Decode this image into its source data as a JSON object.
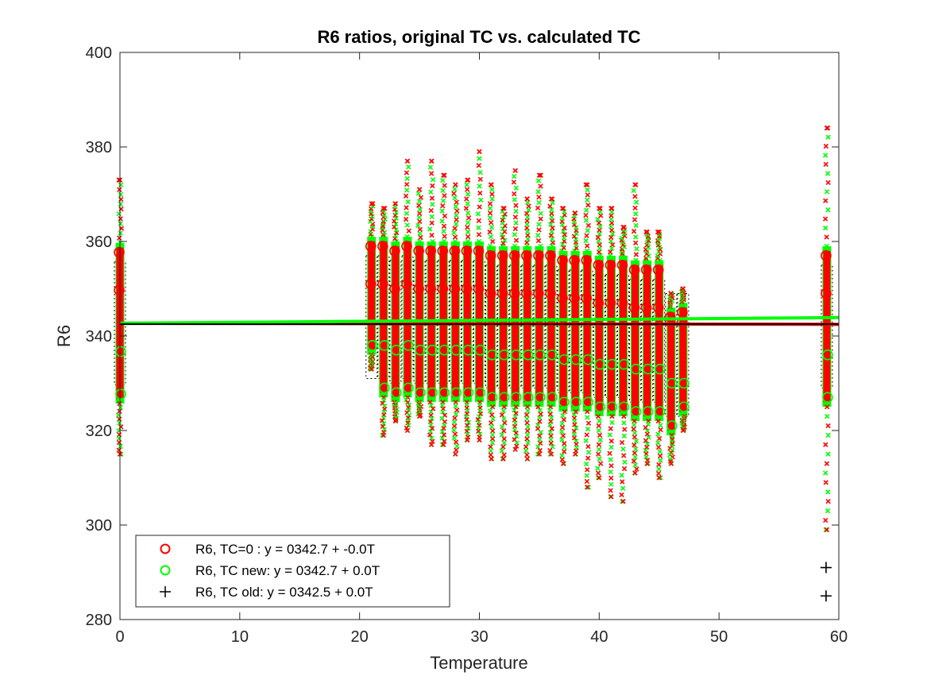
{
  "chart_data": {
    "type": "scatter",
    "title": "R6 ratios, original TC vs. calculated TC",
    "xlabel": "Temperature",
    "ylabel": "R6",
    "xlim": [
      0,
      60
    ],
    "ylim": [
      280,
      400
    ],
    "xticks": [
      "0",
      "10",
      "20",
      "30",
      "40",
      "50",
      "60"
    ],
    "yticks": [
      "280",
      "300",
      "320",
      "340",
      "360",
      "380",
      "400"
    ],
    "grid": false,
    "legend_position": "bottom-left",
    "series": [
      {
        "name": "R6, TC=0  :  y = 0342.7 + -0.0T",
        "marker": "circle",
        "color": "#ff0000",
        "fit_line": {
          "intercept": 342.7,
          "slope": -0.004,
          "color": "#ff0000"
        }
      },
      {
        "name": "R6, TC new: y = 0342.7 + 0.0T",
        "marker": "circle",
        "color": "#00ff00",
        "fit_line": {
          "intercept": 342.7,
          "slope": 0.02,
          "color": "#00ff00"
        }
      },
      {
        "name": "R6, TC old: y = 0342.5 + 0.0T",
        "marker": "plus",
        "color": "#000000",
        "fit_line": {
          "intercept": 342.5,
          "slope": 0.0,
          "color": "#000000"
        }
      }
    ],
    "temperature_groups": [
      {
        "t": 0,
        "min": 315,
        "max": 373,
        "mean": 342.7
      },
      {
        "t": 21,
        "min": 333,
        "max": 368,
        "mean": 344
      },
      {
        "t": 22,
        "min": 319,
        "max": 367,
        "mean": 344
      },
      {
        "t": 23,
        "min": 322,
        "max": 368,
        "mean": 343
      },
      {
        "t": 24,
        "min": 320,
        "max": 377,
        "mean": 344
      },
      {
        "t": 25,
        "min": 323,
        "max": 371,
        "mean": 343
      },
      {
        "t": 26,
        "min": 317,
        "max": 377,
        "mean": 343
      },
      {
        "t": 27,
        "min": 317,
        "max": 374,
        "mean": 343
      },
      {
        "t": 28,
        "min": 315,
        "max": 372,
        "mean": 343
      },
      {
        "t": 29,
        "min": 318,
        "max": 373,
        "mean": 343
      },
      {
        "t": 30,
        "min": 318,
        "max": 379,
        "mean": 343
      },
      {
        "t": 31,
        "min": 314,
        "max": 372,
        "mean": 342
      },
      {
        "t": 32,
        "min": 314,
        "max": 367,
        "mean": 342
      },
      {
        "t": 33,
        "min": 316,
        "max": 375,
        "mean": 342
      },
      {
        "t": 34,
        "min": 314,
        "max": 369,
        "mean": 342
      },
      {
        "t": 35,
        "min": 315,
        "max": 374,
        "mean": 342
      },
      {
        "t": 36,
        "min": 315,
        "max": 369,
        "mean": 342
      },
      {
        "t": 37,
        "min": 313,
        "max": 367,
        "mean": 341
      },
      {
        "t": 38,
        "min": 315,
        "max": 366,
        "mean": 341
      },
      {
        "t": 39,
        "min": 308,
        "max": 372,
        "mean": 341
      },
      {
        "t": 40,
        "min": 310,
        "max": 367,
        "mean": 340
      },
      {
        "t": 41,
        "min": 306,
        "max": 367,
        "mean": 340
      },
      {
        "t": 42,
        "min": 305,
        "max": 363,
        "mean": 340
      },
      {
        "t": 43,
        "min": 311,
        "max": 372,
        "mean": 339
      },
      {
        "t": 44,
        "min": 313,
        "max": 362,
        "mean": 339
      },
      {
        "t": 45,
        "min": 310,
        "max": 362,
        "mean": 339
      },
      {
        "t": 46,
        "min": 313,
        "max": 349,
        "mean": 336
      },
      {
        "t": 47,
        "min": 320,
        "max": 350,
        "mean": 336
      },
      {
        "t": 59,
        "min": 299,
        "max": 384,
        "mean": 342
      }
    ],
    "outliers": [
      {
        "t": 59,
        "y": 291,
        "series": "R6, TC old: y = 0342.5 + 0.0T"
      },
      {
        "t": 59,
        "y": 285,
        "series": "R6, TC old: y = 0342.5 + 0.0T"
      }
    ]
  }
}
